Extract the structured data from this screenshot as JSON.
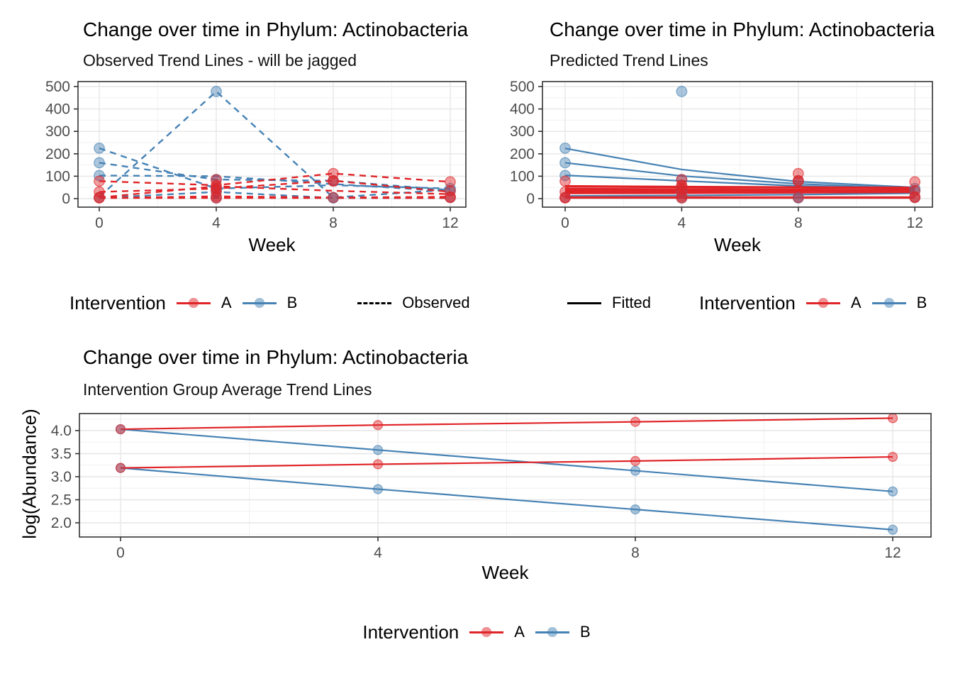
{
  "colors": {
    "red": "#E02428",
    "blue": "#4682B4",
    "linetype_key": "#000000",
    "axis_text": "#4D4D4D",
    "grid_major": "#E6E6E6",
    "grid_minor": "#F1F1F1",
    "panel_border": "#333333"
  },
  "chart_data": [
    {
      "id": "observed",
      "type": "line",
      "title": "Change over time in Phylum: Actinobacteria",
      "subtitle": "Observed Trend Lines - will be jagged",
      "xlabel": "Week",
      "ylabel": "",
      "line_style": "dashed",
      "grid": "on",
      "legend_position": "bottom",
      "x": [
        0,
        4,
        8,
        12
      ],
      "xticks": [
        0,
        4,
        8,
        12
      ],
      "xtick_labels": [
        "0",
        "4",
        "8",
        "12"
      ],
      "yticks": [
        0,
        100,
        200,
        300,
        400,
        500
      ],
      "ytick_labels": [
        "0",
        "100",
        "200",
        "300",
        "400",
        "500"
      ],
      "xlim": [
        -0.73,
        12.53
      ],
      "ylim": [
        -38,
        522
      ],
      "series": [
        {
          "name": "B-obs-1",
          "group": "B",
          "values": [
            225,
            45,
            60,
            45
          ]
        },
        {
          "name": "B-obs-2",
          "group": "B",
          "values": [
            160,
            85,
            80,
            38
          ]
        },
        {
          "name": "B-obs-3",
          "group": "B",
          "values": [
            103,
            100,
            65,
            33
          ]
        },
        {
          "name": "B-obs-4",
          "group": "B",
          "values": [
            8,
            478,
            5,
            40
          ]
        },
        {
          "name": "B-obs-5",
          "group": "B",
          "values": [
            3,
            30,
            3,
            3
          ]
        },
        {
          "name": "A-obs-1",
          "group": "A",
          "values": [
            78,
            60,
            112,
            75
          ]
        },
        {
          "name": "A-obs-2",
          "group": "A",
          "values": [
            30,
            45,
            80,
            30
          ]
        },
        {
          "name": "A-obs-3",
          "group": "A",
          "values": [
            5,
            55,
            35,
            20
          ]
        },
        {
          "name": "A-obs-4",
          "group": "A",
          "values": [
            3,
            10,
            5,
            8
          ]
        },
        {
          "name": "A-obs-5",
          "group": "A",
          "values": [
            3,
            3,
            3,
            3
          ]
        }
      ],
      "points": {
        "B": [
          [
            0,
            225
          ],
          [
            0,
            160
          ],
          [
            0,
            103
          ],
          [
            0,
            5
          ],
          [
            4,
            478
          ],
          [
            4,
            85
          ],
          [
            4,
            45
          ],
          [
            4,
            30
          ],
          [
            4,
            3
          ],
          [
            8,
            80
          ],
          [
            8,
            5
          ],
          [
            8,
            3
          ],
          [
            12,
            45
          ],
          [
            12,
            35
          ],
          [
            12,
            5
          ]
        ],
        "A": [
          [
            0,
            78
          ],
          [
            0,
            30
          ],
          [
            0,
            5
          ],
          [
            0,
            3
          ],
          [
            4,
            85
          ],
          [
            4,
            60
          ],
          [
            4,
            55
          ],
          [
            4,
            45
          ],
          [
            4,
            35
          ],
          [
            4,
            10
          ],
          [
            4,
            3
          ],
          [
            8,
            112
          ],
          [
            8,
            80
          ],
          [
            8,
            78
          ],
          [
            8,
            5
          ],
          [
            12,
            75
          ],
          [
            12,
            35
          ],
          [
            12,
            8
          ],
          [
            12,
            5
          ]
        ]
      },
      "legend": {
        "title": "Intervention",
        "entries": [
          {
            "label": "A",
            "color_key": "red"
          },
          {
            "label": "B",
            "color_key": "blue"
          }
        ],
        "linetype": {
          "label": "Observed",
          "style": "dashed"
        }
      }
    },
    {
      "id": "predicted",
      "type": "line",
      "title": "Change over time in Phylum: Actinobacteria",
      "subtitle": "Predicted Trend Lines",
      "xlabel": "Week",
      "ylabel": "",
      "line_style": "solid",
      "grid": "on",
      "legend_position": "bottom",
      "x": [
        0,
        4,
        8,
        12
      ],
      "xticks": [
        0,
        4,
        8,
        12
      ],
      "xtick_labels": [
        "0",
        "4",
        "8",
        "12"
      ],
      "yticks": [
        0,
        100,
        200,
        300,
        400,
        500
      ],
      "ytick_labels": [
        "0",
        "100",
        "200",
        "300",
        "400",
        "500"
      ],
      "xlim": [
        -0.73,
        12.53
      ],
      "ylim": [
        -38,
        522
      ],
      "series": [
        {
          "name": "B-fit-1",
          "group": "B",
          "values": [
            224,
            130,
            76,
            50
          ]
        },
        {
          "name": "B-fit-2",
          "group": "B",
          "values": [
            160,
            101,
            66,
            45
          ]
        },
        {
          "name": "B-fit-3",
          "group": "B",
          "values": [
            104,
            79,
            57,
            42
          ]
        },
        {
          "name": "B-fit-4",
          "group": "B",
          "values": [
            12,
            14,
            18,
            24
          ]
        },
        {
          "name": "B-fit-5",
          "group": "B",
          "values": [
            3,
            3,
            3,
            3
          ]
        },
        {
          "name": "A-fit-1",
          "group": "A",
          "values": [
            55,
            52,
            50,
            48
          ]
        },
        {
          "name": "A-fit-2",
          "group": "A",
          "values": [
            43,
            41,
            39,
            37
          ]
        },
        {
          "name": "A-fit-3",
          "group": "A",
          "values": [
            36,
            35,
            34,
            34
          ]
        },
        {
          "name": "A-fit-4",
          "group": "A",
          "values": [
            30,
            30,
            31,
            32
          ]
        },
        {
          "name": "A-fit-5",
          "group": "A",
          "values": [
            25,
            26,
            28,
            30
          ]
        },
        {
          "name": "A-fit-6",
          "group": "A",
          "values": [
            5,
            5,
            5,
            5
          ]
        }
      ],
      "points": {
        "B": [
          [
            0,
            225
          ],
          [
            0,
            160
          ],
          [
            0,
            103
          ],
          [
            0,
            5
          ],
          [
            4,
            478
          ],
          [
            4,
            85
          ],
          [
            4,
            45
          ],
          [
            4,
            30
          ],
          [
            4,
            3
          ],
          [
            8,
            80
          ],
          [
            8,
            5
          ],
          [
            8,
            3
          ],
          [
            12,
            45
          ],
          [
            12,
            35
          ],
          [
            12,
            5
          ]
        ],
        "A": [
          [
            0,
            78
          ],
          [
            0,
            30
          ],
          [
            0,
            5
          ],
          [
            0,
            3
          ],
          [
            4,
            85
          ],
          [
            4,
            60
          ],
          [
            4,
            55
          ],
          [
            4,
            45
          ],
          [
            4,
            35
          ],
          [
            4,
            10
          ],
          [
            4,
            3
          ],
          [
            8,
            112
          ],
          [
            8,
            80
          ],
          [
            8,
            78
          ],
          [
            8,
            5
          ],
          [
            12,
            75
          ],
          [
            12,
            35
          ],
          [
            12,
            8
          ],
          [
            12,
            5
          ]
        ]
      },
      "legend": {
        "title": "Intervention",
        "entries": [
          {
            "label": "A",
            "color_key": "red"
          },
          {
            "label": "B",
            "color_key": "blue"
          }
        ],
        "linetype": {
          "label": "Fitted",
          "style": "solid"
        }
      }
    },
    {
      "id": "average",
      "type": "line",
      "title": "Change over time in Phylum: Actinobacteria",
      "subtitle": "Intervention Group Average Trend Lines",
      "xlabel": "Week",
      "ylabel": "log(Abundance)",
      "line_style": "solid",
      "grid": "on",
      "legend_position": "bottom",
      "x": [
        0,
        4,
        8,
        12
      ],
      "xticks": [
        0,
        4,
        8,
        12
      ],
      "xtick_labels": [
        "0",
        "4",
        "8",
        "12"
      ],
      "yticks": [
        2.0,
        2.5,
        3.0,
        3.5,
        4.0
      ],
      "ytick_labels": [
        "2.0",
        "2.5",
        "3.0",
        "3.5",
        "4.0"
      ],
      "xlim": [
        -0.64,
        12.6
      ],
      "ylim": [
        1.69,
        4.37
      ],
      "series": [
        {
          "name": "B-avg-upper",
          "group": "B",
          "values": [
            4.03,
            3.58,
            3.13,
            2.68
          ]
        },
        {
          "name": "B-avg-lower",
          "group": "B",
          "values": [
            3.19,
            2.73,
            2.29,
            1.85
          ]
        },
        {
          "name": "A-avg-upper",
          "group": "A",
          "values": [
            4.03,
            4.12,
            4.19,
            4.27
          ]
        },
        {
          "name": "A-avg-lower",
          "group": "A",
          "values": [
            3.19,
            3.27,
            3.34,
            3.43
          ]
        }
      ],
      "legend": {
        "title": "Intervention",
        "entries": [
          {
            "label": "A",
            "color_key": "red"
          },
          {
            "label": "B",
            "color_key": "blue"
          }
        ]
      }
    }
  ]
}
